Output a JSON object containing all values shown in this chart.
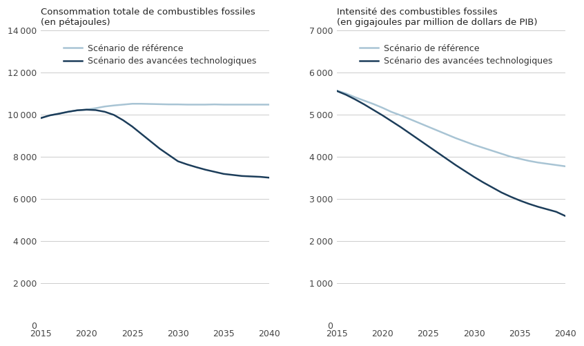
{
  "years": [
    2015,
    2016,
    2017,
    2018,
    2019,
    2020,
    2021,
    2022,
    2023,
    2024,
    2025,
    2026,
    2027,
    2028,
    2029,
    2030,
    2031,
    2032,
    2033,
    2034,
    2035,
    2036,
    2037,
    2038,
    2039,
    2040
  ],
  "left_ref": [
    9850,
    9980,
    10060,
    10150,
    10220,
    10250,
    10320,
    10400,
    10450,
    10490,
    10530,
    10530,
    10520,
    10510,
    10500,
    10500,
    10490,
    10490,
    10490,
    10500,
    10490,
    10490,
    10490,
    10490,
    10490,
    10490
  ],
  "left_adv": [
    9850,
    9980,
    10060,
    10150,
    10220,
    10250,
    10230,
    10150,
    10000,
    9750,
    9450,
    9100,
    8750,
    8400,
    8100,
    7800,
    7650,
    7520,
    7400,
    7300,
    7200,
    7150,
    7100,
    7080,
    7060,
    7020
  ],
  "right_ref": [
    5580,
    5510,
    5420,
    5340,
    5260,
    5170,
    5070,
    4990,
    4900,
    4810,
    4720,
    4630,
    4540,
    4450,
    4370,
    4290,
    4220,
    4150,
    4080,
    4010,
    3960,
    3910,
    3870,
    3840,
    3810,
    3780
  ],
  "right_adv": [
    5570,
    5480,
    5370,
    5250,
    5120,
    4990,
    4850,
    4710,
    4560,
    4410,
    4260,
    4110,
    3960,
    3810,
    3670,
    3530,
    3400,
    3280,
    3160,
    3060,
    2970,
    2890,
    2820,
    2760,
    2700,
    2600
  ],
  "color_ref": "#a8c4d4",
  "color_adv": "#1c3d5a",
  "left_title_line1": "Consommation totale de combustibles fossiles",
  "left_title_line2": "(en pétajoules)",
  "right_title_line1": "Intensité des combustibles fossiles",
  "right_title_line2": "(en gigajoules par million de dollars de PIB)",
  "legend_ref": "Scénario de référence",
  "legend_adv": "Scénario des avancées technologiques",
  "left_ylim": [
    0,
    14000
  ],
  "left_yticks": [
    0,
    2000,
    4000,
    6000,
    8000,
    10000,
    12000,
    14000
  ],
  "right_ylim": [
    0,
    7000
  ],
  "right_yticks": [
    0,
    1000,
    2000,
    3000,
    4000,
    5000,
    6000,
    7000
  ],
  "xticks": [
    2015,
    2020,
    2025,
    2030,
    2035,
    2040
  ],
  "bg_color": "#ffffff",
  "grid_color": "#cccccc",
  "title_fontsize": 9.5,
  "legend_fontsize": 9,
  "tick_fontsize": 9,
  "line_width": 1.8
}
